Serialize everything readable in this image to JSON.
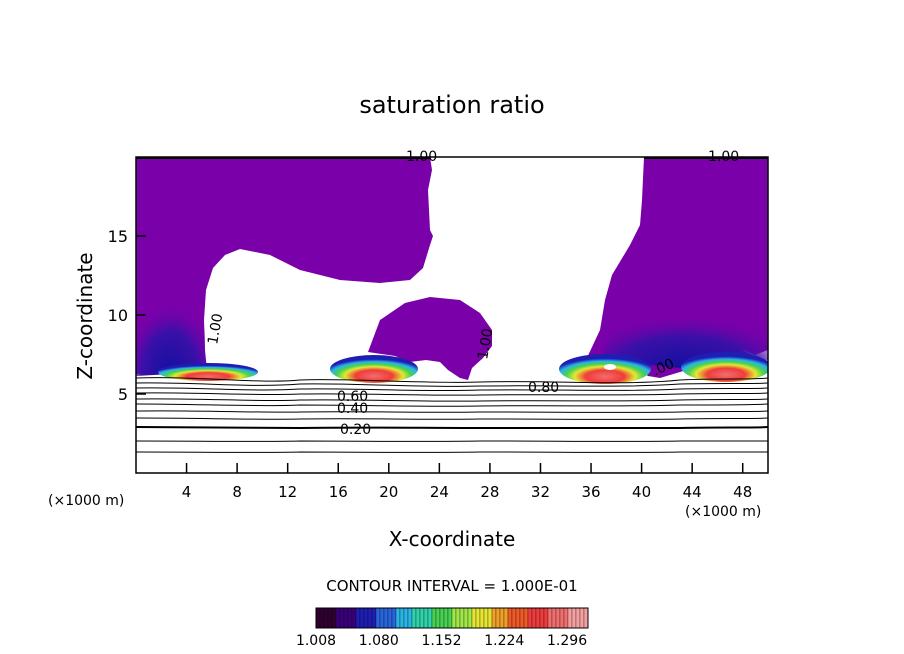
{
  "chart_data": {
    "type": "contour",
    "title": "saturation ratio",
    "xlabel": "X-coordinate",
    "ylabel": "Z-coordinate",
    "x_unit": "(×1000 m)",
    "y_unit": "(×1000 m)",
    "xlim": [
      0,
      50
    ],
    "ylim": [
      0,
      20
    ],
    "x_ticks": [
      "4",
      "8",
      "12",
      "16",
      "20",
      "24",
      "28",
      "32",
      "36",
      "40",
      "44",
      "48"
    ],
    "y_ticks": [
      "5",
      "10",
      "15"
    ],
    "contour_interval_text": "CONTOUR INTERVAL = 1.000E-01",
    "contour_labels": [
      "1.00",
      "1.00",
      "1.00",
      "1.00",
      ".00",
      "0.80",
      "0.60",
      "0.40",
      "0.20"
    ],
    "colorbar": {
      "tick_labels": [
        "1.008",
        "1.080",
        "1.152",
        "1.224",
        "1.296"
      ],
      "min": 1.008,
      "max": 1.32,
      "colors": [
        "#300030",
        "#3a007a",
        "#1e1eb4",
        "#2864dc",
        "#2ab4e6",
        "#30d2aa",
        "#46d250",
        "#a0e646",
        "#e6e632",
        "#f0a028",
        "#f05a28",
        "#f03c3c",
        "#f06e6e",
        "#f5a0a0"
      ]
    },
    "grid": false,
    "legend": "none"
  }
}
